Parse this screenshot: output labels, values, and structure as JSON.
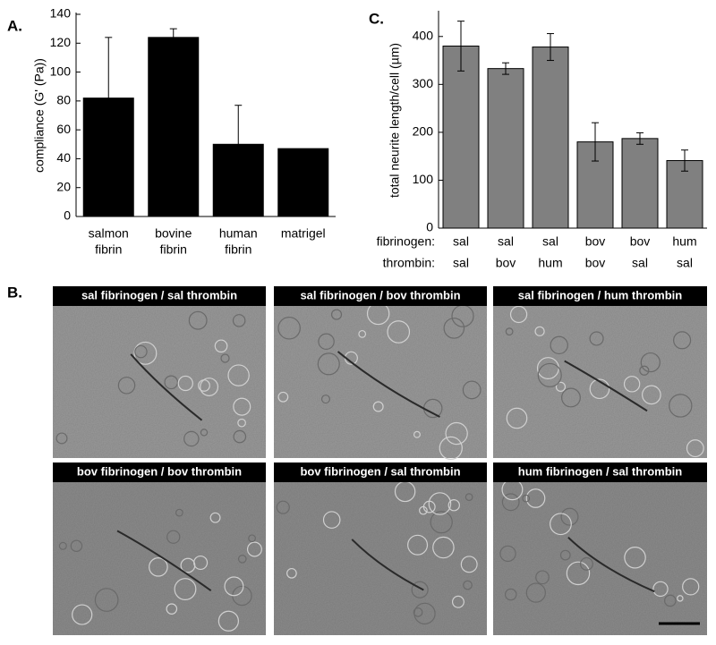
{
  "chart_data": [
    {
      "type": "bar",
      "ylabel": "compliance (G' (Pa))",
      "categories": [
        [
          "salmon",
          "fibrin"
        ],
        [
          "bovine",
          "fibrin"
        ],
        [
          "human",
          "fibrin"
        ],
        [
          "matrigel"
        ]
      ],
      "values": [
        82,
        124,
        50,
        47
      ],
      "errors": [
        42,
        6,
        27,
        null
      ],
      "color": "#000000",
      "ylim": [
        0,
        140
      ],
      "yticks": [
        0,
        20,
        40,
        60,
        80,
        100,
        120,
        140
      ]
    },
    {
      "type": "bar",
      "ylabel": "total neurite length/cell (µm)",
      "row_labels": [
        "fibrinogen:",
        "thrombin:"
      ],
      "categories": [
        [
          "sal",
          "sal"
        ],
        [
          "sal",
          "bov"
        ],
        [
          "sal",
          "hum"
        ],
        [
          "bov",
          "bov"
        ],
        [
          "bov",
          "sal"
        ],
        [
          "hum",
          "sal"
        ]
      ],
      "values": [
        380,
        333,
        378,
        180,
        187,
        141
      ],
      "errors": [
        52,
        12,
        28,
        40,
        12,
        22
      ],
      "color": "#808080",
      "ylim": [
        0,
        450
      ],
      "yticks": [
        0,
        100,
        200,
        300,
        400
      ]
    }
  ],
  "figure": {
    "panel_letters": [
      "A.",
      "B.",
      "C."
    ],
    "micrographs": [
      "sal fibrinogen / sal thrombin",
      "sal fibrinogen / bov thrombin",
      "sal fibrinogen / hum thrombin",
      "bov fibrinogen / bov thrombin",
      "bov fibrinogen / sal thrombin",
      "hum fibrinogen / sal thrombin"
    ]
  }
}
